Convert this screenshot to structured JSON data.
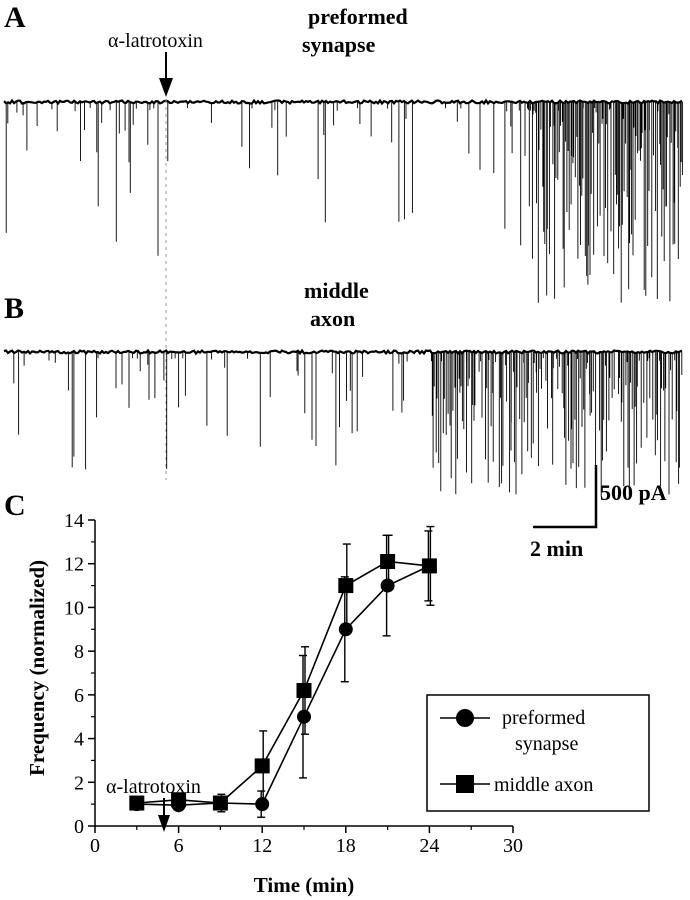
{
  "panels": {
    "a": {
      "letter": "A",
      "trace_label_1": "preformed",
      "trace_label_2": "synapse",
      "arrow_label": "α-latrotoxin"
    },
    "b": {
      "letter": "B",
      "trace_label_1": "middle",
      "trace_label_2": "axon"
    },
    "c": {
      "letter": "C"
    }
  },
  "scale_bar": {
    "current_label": "500 pA",
    "time_label": "2 min"
  },
  "chart_data": {
    "type": "line",
    "xlabel": "Time (min)",
    "ylabel": "Frequency (normalized)",
    "xlim": [
      0,
      30
    ],
    "ylim": [
      0,
      14
    ],
    "xticks": [
      0,
      6,
      12,
      18,
      24,
      30
    ],
    "yticks": [
      0,
      2,
      4,
      6,
      8,
      10,
      12,
      14
    ],
    "grid": false,
    "legend_position": "bottom-right",
    "annotation": {
      "text": "α-latrotoxin",
      "x": 5
    },
    "series": [
      {
        "name": "preformed synapse",
        "marker": "circle",
        "x": [
          3,
          6,
          9,
          12,
          15,
          18,
          21,
          24
        ],
        "y": [
          1.0,
          0.95,
          1.05,
          1.0,
          5.0,
          9.0,
          11.0,
          11.9
        ],
        "err": [
          0.0,
          0.2,
          0.3,
          0.6,
          2.8,
          2.4,
          2.3,
          1.6
        ]
      },
      {
        "name": "middle axon",
        "marker": "square",
        "x": [
          3,
          6,
          9,
          12,
          15,
          18,
          21,
          24
        ],
        "y": [
          1.05,
          1.2,
          1.05,
          2.75,
          6.2,
          11.0,
          12.1,
          11.9
        ],
        "err": [
          0.0,
          0.15,
          0.4,
          1.6,
          2.0,
          1.9,
          1.2,
          1.8
        ]
      }
    ]
  }
}
